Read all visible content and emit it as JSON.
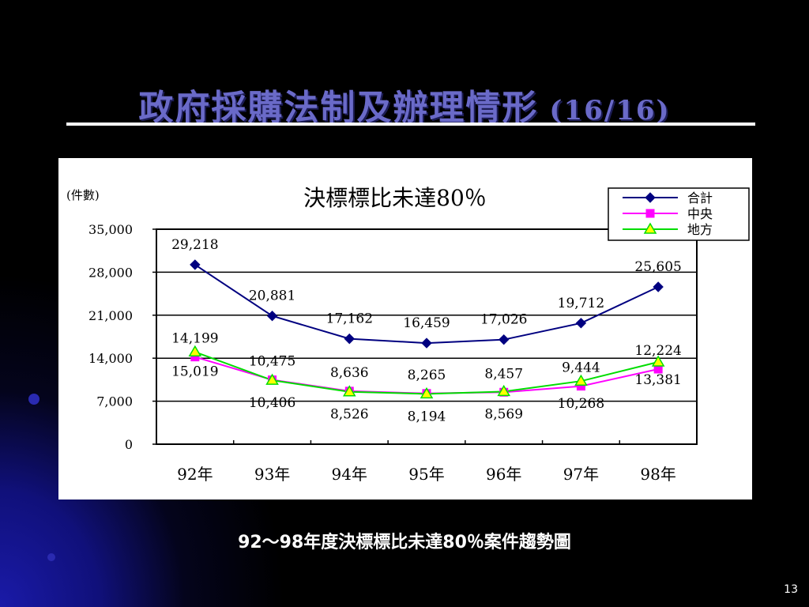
{
  "slide": {
    "title": "政府採購法制及辦理情形",
    "title_suffix": "(16/16)",
    "caption": "92～98年度決標標比未達80％案件趨勢圖",
    "page_number": "13"
  },
  "chart_data": {
    "type": "line",
    "title": "決標標比未達80％",
    "ylabel": "(件數)",
    "categories": [
      "92年",
      "93年",
      "94年",
      "95年",
      "96年",
      "97年",
      "98年"
    ],
    "ylim": [
      0,
      35000
    ],
    "yticks": [
      "0",
      "7,000",
      "14,000",
      "21,000",
      "28,000",
      "35,000"
    ],
    "grid": true,
    "legend_position": "top-right",
    "series": [
      {
        "name": "合計",
        "color": "#000080",
        "marker": "diamond",
        "values": [
          29218,
          20881,
          17162,
          16459,
          17026,
          19712,
          25605
        ],
        "labels": [
          "29,218",
          "20,881",
          "17,162",
          "16,459",
          "17,026",
          "19,712",
          "25,605"
        ]
      },
      {
        "name": "中央",
        "color": "#ff00ff",
        "marker": "square",
        "values": [
          14199,
          10475,
          8636,
          8265,
          8457,
          9444,
          12224
        ],
        "labels": [
          "14,199",
          "10,475",
          "8,636",
          "8,265",
          "8,457",
          "9,444",
          "12,224"
        ]
      },
      {
        "name": "地方",
        "color": "#00dd00",
        "marker": "triangle",
        "values": [
          15019,
          10406,
          8526,
          8194,
          8569,
          10268,
          13381
        ],
        "labels": [
          "15,019",
          "10,406",
          "8,526",
          "8,194",
          "8,569",
          "10,268",
          "13,381"
        ]
      }
    ]
  }
}
